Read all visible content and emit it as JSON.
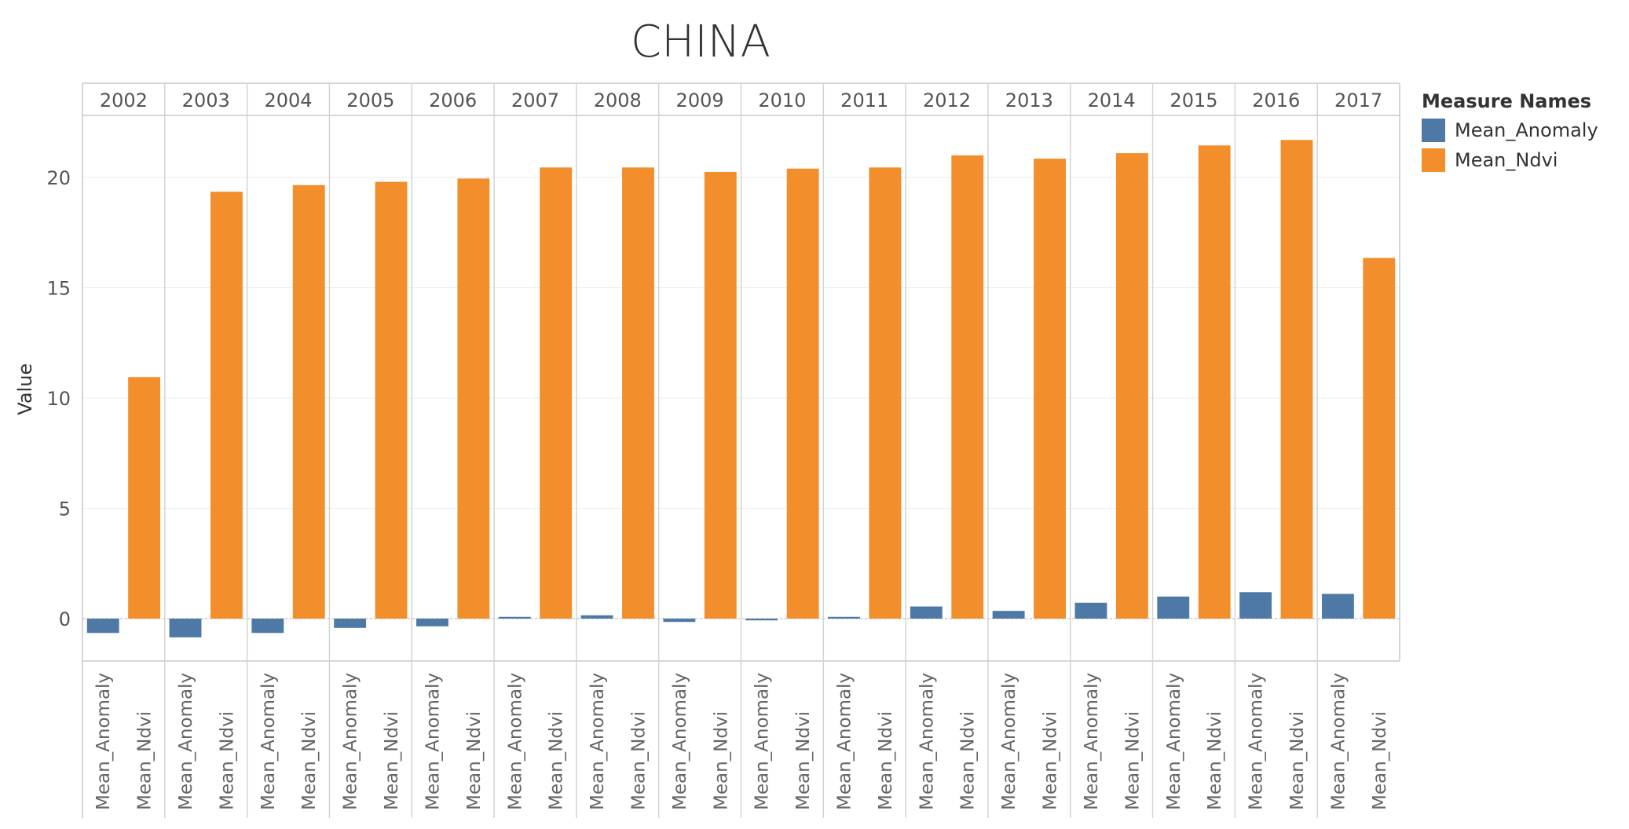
{
  "chart_data": {
    "type": "bar",
    "title": "CHINA",
    "ylabel": "Value",
    "ylim": [
      -2,
      23
    ],
    "yticks": [
      0,
      5,
      10,
      15,
      20
    ],
    "grid": true,
    "legend_position": "right",
    "legend_title": "Measure Names",
    "categories": [
      "2002",
      "2003",
      "2004",
      "2005",
      "2006",
      "2007",
      "2008",
      "2009",
      "2010",
      "2011",
      "2012",
      "2013",
      "2014",
      "2015",
      "2016",
      "2017"
    ],
    "measures": [
      "Mean_Anomaly",
      "Mean_Ndvi"
    ],
    "series": [
      {
        "name": "Mean_Anomaly",
        "color": "#4e79a7",
        "values": [
          -0.65,
          -0.85,
          -0.65,
          -0.42,
          -0.35,
          0.08,
          0.15,
          -0.15,
          -0.08,
          0.08,
          0.55,
          0.35,
          0.72,
          1.0,
          1.2,
          1.12
        ]
      },
      {
        "name": "Mean_Ndvi",
        "color": "#f28e2b",
        "values": [
          10.95,
          19.35,
          19.65,
          19.8,
          19.95,
          20.45,
          20.45,
          20.25,
          20.4,
          20.45,
          21.0,
          20.85,
          21.1,
          21.45,
          21.7,
          16.35
        ]
      }
    ]
  }
}
